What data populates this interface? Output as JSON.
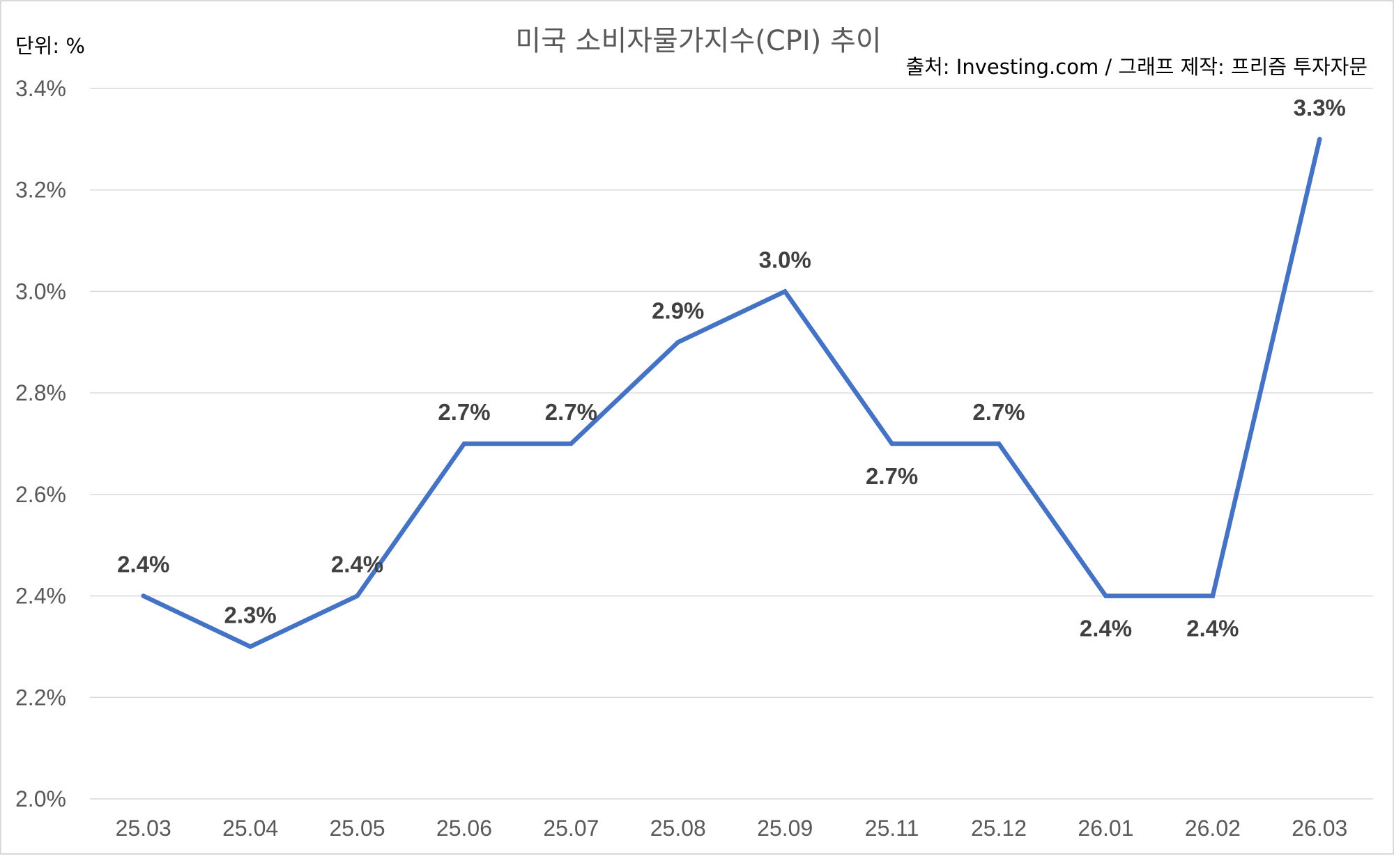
{
  "chart_data": {
    "type": "line",
    "title": "미국 소비자물가지수(CPI) 추이",
    "unit_label": "단위: %",
    "source": "출처: Investing.com / 그래프 제작: 프리즘 투자자문",
    "categories": [
      "25.03",
      "25.04",
      "25.05",
      "25.06",
      "25.07",
      "25.08",
      "25.09",
      "25.11",
      "25.12",
      "26.01",
      "26.02",
      "26.03"
    ],
    "series": [
      {
        "values": [
          2.4,
          2.3,
          2.4,
          2.7,
          2.7,
          2.9,
          3.0,
          2.7,
          2.7,
          2.4,
          2.4,
          3.3
        ],
        "data_labels": [
          "2.4%",
          "2.3%",
          "2.4%",
          "2.7%",
          "2.7%",
          "2.9%",
          "3.0%",
          "2.7%",
          "2.7%",
          "2.4%",
          "2.4%",
          "3.3%"
        ],
        "label_positions": [
          "above",
          "above",
          "above",
          "above",
          "above",
          "above",
          "above",
          "below",
          "above",
          "below",
          "below",
          "above"
        ],
        "color": "#4472C4"
      }
    ],
    "y_ticks": [
      "2.0%",
      "2.2%",
      "2.4%",
      "2.6%",
      "2.8%",
      "3.0%",
      "3.2%",
      "3.4%"
    ],
    "ylim": [
      2.0,
      3.4
    ],
    "y_tick_step": 0.2,
    "grid": true,
    "legend": "none"
  }
}
